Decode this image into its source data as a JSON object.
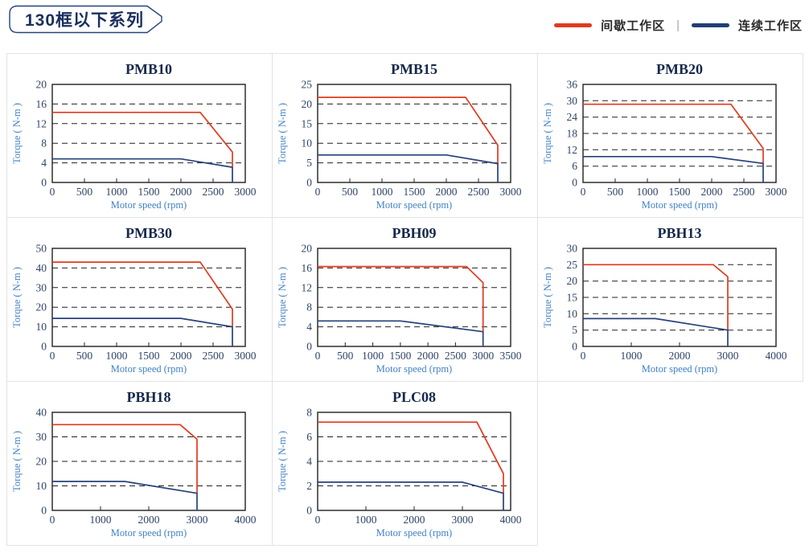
{
  "page": {
    "title": "130框以下系列",
    "legend_separator": "|",
    "legend": [
      {
        "label": "间歇工作区",
        "color": "#e23a1d"
      },
      {
        "label": "连续工作区",
        "color": "#1f3f77"
      }
    ]
  },
  "chart_data": [
    {
      "type": "line",
      "title": "PMB10",
      "xlabel": "Motor speed (rpm)",
      "ylabel": "Torque ( N-m )",
      "xlim": [
        0,
        3000
      ],
      "xticks": [
        0,
        500,
        1000,
        1500,
        2000,
        2500,
        3000
      ],
      "ylim": [
        0,
        20
      ],
      "yticks": [
        0,
        4,
        8,
        12,
        16,
        20
      ],
      "grid": "dashed-horizontal",
      "legend_position": "none",
      "series": [
        {
          "name": "间歇工作区",
          "color": "#e23a1d",
          "points": [
            [
              0,
              14.3
            ],
            [
              2300,
              14.3
            ],
            [
              2800,
              6.2
            ],
            [
              2800,
              3.1
            ]
          ]
        },
        {
          "name": "连续工作区",
          "color": "#26417c",
          "points": [
            [
              0,
              4.8
            ],
            [
              2000,
              4.8
            ],
            [
              2800,
              3.1
            ],
            [
              2800,
              0
            ]
          ]
        }
      ]
    },
    {
      "type": "line",
      "title": "PMB15",
      "xlabel": "Motor speed (rpm)",
      "ylabel": "Torque ( N-m )",
      "xlim": [
        0,
        3000
      ],
      "xticks": [
        0,
        500,
        1000,
        1500,
        2000,
        2500,
        3000
      ],
      "ylim": [
        0,
        25
      ],
      "yticks": [
        0,
        5,
        10,
        15,
        20,
        25
      ],
      "grid": "dashed-horizontal",
      "legend_position": "none",
      "series": [
        {
          "name": "间歇工作区",
          "color": "#e23a1d",
          "points": [
            [
              0,
              21.7
            ],
            [
              2300,
              21.7
            ],
            [
              2800,
              9.5
            ],
            [
              2800,
              4.8
            ]
          ]
        },
        {
          "name": "连续工作区",
          "color": "#26417c",
          "points": [
            [
              0,
              7
            ],
            [
              2000,
              7
            ],
            [
              2800,
              4.8
            ],
            [
              2800,
              0
            ]
          ]
        }
      ]
    },
    {
      "type": "line",
      "title": "PMB20",
      "xlabel": "Motor speed (rpm)",
      "ylabel": "Torque ( N-m )",
      "xlim": [
        0,
        3000
      ],
      "xticks": [
        0,
        500,
        1000,
        1500,
        2000,
        2500,
        3000
      ],
      "ylim": [
        0,
        36
      ],
      "yticks": [
        0,
        6,
        12,
        18,
        24,
        30,
        36
      ],
      "grid": "dashed-horizontal",
      "legend_position": "none",
      "series": [
        {
          "name": "间歇工作区",
          "color": "#e23a1d",
          "points": [
            [
              0,
              28.7
            ],
            [
              2300,
              28.7
            ],
            [
              2800,
              12.5
            ],
            [
              2800,
              7
            ]
          ]
        },
        {
          "name": "连续工作区",
          "color": "#26417c",
          "points": [
            [
              0,
              9.5
            ],
            [
              2000,
              9.5
            ],
            [
              2800,
              7
            ],
            [
              2800,
              0
            ]
          ]
        }
      ]
    },
    {
      "type": "line",
      "title": "PMB30",
      "xlabel": "Motor speed (rpm)",
      "ylabel": "Torque ( N-m )",
      "xlim": [
        0,
        3000
      ],
      "xticks": [
        0,
        500,
        1000,
        1500,
        2000,
        2500,
        3000
      ],
      "ylim": [
        0,
        50
      ],
      "yticks": [
        0,
        10,
        20,
        30,
        40,
        50
      ],
      "grid": "dashed-horizontal",
      "legend_position": "none",
      "series": [
        {
          "name": "间歇工作区",
          "color": "#e23a1d",
          "points": [
            [
              0,
              43
            ],
            [
              2300,
              43
            ],
            [
              2800,
              19
            ],
            [
              2800,
              10
            ]
          ]
        },
        {
          "name": "连续工作区",
          "color": "#26417c",
          "points": [
            [
              0,
              14.3
            ],
            [
              2000,
              14.3
            ],
            [
              2800,
              10
            ],
            [
              2800,
              0
            ]
          ]
        }
      ]
    },
    {
      "type": "line",
      "title": "PBH09",
      "xlabel": "Motor speed (rpm)",
      "ylabel": "Torque ( N-m )",
      "xlim": [
        0,
        3500
      ],
      "xticks": [
        0,
        500,
        1000,
        1500,
        2000,
        2500,
        3000,
        3500
      ],
      "ylim": [
        0,
        20
      ],
      "yticks": [
        0,
        4,
        8,
        12,
        16,
        20
      ],
      "grid": "dashed-horizontal",
      "legend_position": "none",
      "series": [
        {
          "name": "间歇工作区",
          "color": "#e23a1d",
          "points": [
            [
              0,
              16.3
            ],
            [
              2700,
              16.3
            ],
            [
              3000,
              13
            ],
            [
              3000,
              3
            ]
          ]
        },
        {
          "name": "连续工作区",
          "color": "#26417c",
          "points": [
            [
              0,
              5.2
            ],
            [
              1500,
              5.2
            ],
            [
              3000,
              3
            ],
            [
              3000,
              0
            ]
          ]
        }
      ]
    },
    {
      "type": "line",
      "title": "PBH13",
      "xlabel": "Motor speed (rpm)",
      "ylabel": "Torque ( N-m )",
      "xlim": [
        0,
        4000
      ],
      "xticks": [
        0,
        1000,
        2000,
        3000,
        4000
      ],
      "ylim": [
        0,
        30
      ],
      "yticks": [
        0,
        5,
        10,
        15,
        20,
        25,
        30
      ],
      "grid": "dashed-horizontal",
      "legend_position": "none",
      "series": [
        {
          "name": "间歇工作区",
          "color": "#e23a1d",
          "points": [
            [
              0,
              25
            ],
            [
              2700,
              25
            ],
            [
              3000,
              21.3
            ],
            [
              3000,
              5
            ]
          ]
        },
        {
          "name": "连续工作区",
          "color": "#26417c",
          "points": [
            [
              0,
              8.5
            ],
            [
              1500,
              8.5
            ],
            [
              3000,
              5
            ],
            [
              3000,
              0
            ]
          ]
        }
      ]
    },
    {
      "type": "line",
      "title": "PBH18",
      "xlabel": "Motor speed (rpm)",
      "ylabel": "Torque ( N-m )",
      "xlim": [
        0,
        4000
      ],
      "xticks": [
        0,
        1000,
        2000,
        3000,
        4000
      ],
      "ylim": [
        0,
        40
      ],
      "yticks": [
        0,
        10,
        20,
        30,
        40
      ],
      "grid": "dashed-horizontal",
      "legend_position": "none",
      "series": [
        {
          "name": "间歇工作区",
          "color": "#e23a1d",
          "points": [
            [
              0,
              35
            ],
            [
              2650,
              35
            ],
            [
              3000,
              29
            ],
            [
              3000,
              7
            ]
          ]
        },
        {
          "name": "连续工作区",
          "color": "#26417c",
          "points": [
            [
              0,
              11.8
            ],
            [
              1500,
              11.8
            ],
            [
              3000,
              7
            ],
            [
              3000,
              0
            ]
          ]
        }
      ]
    },
    {
      "type": "line",
      "title": "PLC08",
      "xlabel": "Motor speed (rpm)",
      "ylabel": "Torque ( N-m )",
      "xlim": [
        0,
        4000
      ],
      "xticks": [
        0,
        1000,
        2000,
        3000,
        4000
      ],
      "ylim": [
        0,
        8
      ],
      "yticks": [
        0,
        2,
        4,
        6,
        8
      ],
      "grid": "dashed-horizontal",
      "legend_position": "none",
      "series": [
        {
          "name": "间歇工作区",
          "color": "#e23a1d",
          "points": [
            [
              0,
              7.2
            ],
            [
              3300,
              7.2
            ],
            [
              3850,
              3
            ],
            [
              3850,
              1.4
            ]
          ]
        },
        {
          "name": "连续工作区",
          "color": "#26417c",
          "points": [
            [
              0,
              2.3
            ],
            [
              3000,
              2.3
            ],
            [
              3850,
              1.4
            ],
            [
              3850,
              0
            ]
          ]
        }
      ]
    }
  ]
}
